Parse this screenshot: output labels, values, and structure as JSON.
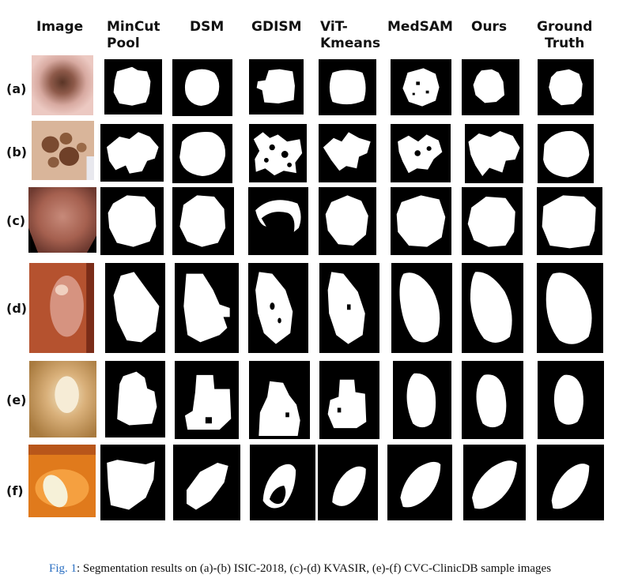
{
  "columns": [
    "Image",
    "MinCut\nPool",
    "DSM",
    "GDISM",
    "ViT-\nKmeans",
    "MedSAM",
    "Ours",
    "Ground\nTruth"
  ],
  "rows": [
    "(a)",
    "(b)",
    "(c)",
    "(d)",
    "(e)",
    "(f)"
  ],
  "caption": {
    "label": "Fig. 1",
    "text": ": Segmentation results on (a)-(b) ISIC-2018, (c)-(d) KVASIR, (e)-(f) CVC-ClinicDB sample images"
  },
  "colors": {
    "mask_bg": "#000000",
    "mask_fg": "#ffffff",
    "caption_label": "#2a6fc2"
  }
}
